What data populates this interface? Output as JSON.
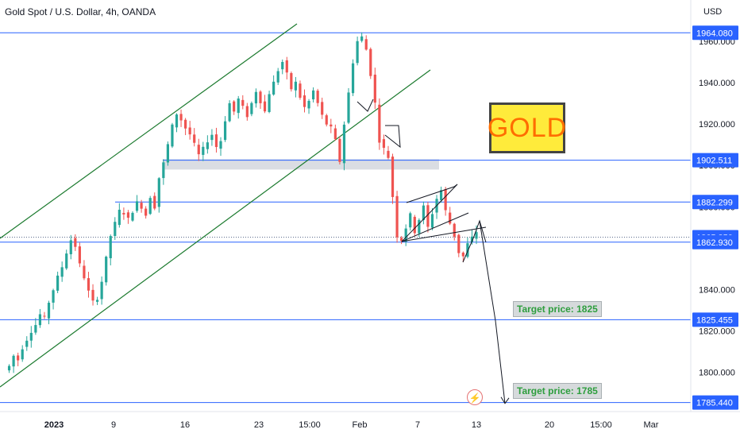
{
  "header": {
    "symbol_title": "Gold Spot / U.S. Dollar, 4h, OANDA",
    "currency": "USD"
  },
  "annotations": {
    "gold_label": "GOLD",
    "target_1": "Target price: 1825",
    "target_2": "Target price: 1785",
    "lightning_icon": "lightning-icon"
  },
  "colors": {
    "bull": "#26a69a",
    "bear": "#ef5350",
    "level_line": "#2962ff",
    "channel": "#1b7a2e",
    "zone": "#d1d4dc",
    "badge": "#2962ff"
  },
  "chart_data": {
    "type": "candlestick",
    "title": "Gold Spot / U.S. Dollar, 4h, OANDA",
    "y_unit": "USD",
    "ylim": [
      1781,
      1985
    ],
    "y_ticks": [
      1800,
      1820,
      1840,
      1880,
      1900,
      1920,
      1940,
      1960
    ],
    "y_tick_labels": [
      "1800.000",
      "1820.000",
      "1840.000",
      "1880.000",
      "1900.000",
      "1920.000",
      "1940.000",
      "1960.000"
    ],
    "x_ticks": [
      "2023",
      "9",
      "16",
      "23",
      "15:00",
      "Feb",
      "7",
      "13",
      "20",
      "15:00",
      "Mar"
    ],
    "price_badges": [
      {
        "label": "1964.080",
        "value": 1964.08
      },
      {
        "label": "1902.511",
        "value": 1902.511
      },
      {
        "label": "1882.299",
        "value": 1882.299
      },
      {
        "label": "1865.350",
        "value": 1865.35
      },
      {
        "label": "1862.930",
        "value": 1862.93
      },
      {
        "label": "1825.455",
        "value": 1825.455
      },
      {
        "label": "1785.440",
        "value": 1785.44
      }
    ],
    "horizontal_levels": [
      1964.08,
      1902.511,
      1882.299,
      1862.93,
      1825.455,
      1785.44
    ],
    "dotted_level": 1865.35,
    "support_zone": [
      1898,
      1903
    ],
    "targets": [
      1825,
      1785
    ],
    "price_path": [
      1801,
      1803,
      1808,
      1806,
      1812,
      1816,
      1820,
      1823,
      1828,
      1826,
      1834,
      1840,
      1846,
      1851,
      1858,
      1864,
      1861,
      1852,
      1846,
      1839,
      1834,
      1836,
      1844,
      1855,
      1866,
      1872,
      1878,
      1877,
      1874,
      1878,
      1882,
      1880,
      1876,
      1885,
      1880,
      1894,
      1901,
      1910,
      1919,
      1925,
      1922,
      1918,
      1915,
      1910,
      1905,
      1908,
      1912,
      1915,
      1909,
      1912,
      1922,
      1930,
      1926,
      1932,
      1928,
      1924,
      1930,
      1936,
      1931,
      1926,
      1935,
      1940,
      1946,
      1950,
      1944,
      1937,
      1940,
      1933,
      1928,
      1931,
      1936,
      1930,
      1924,
      1920,
      1918,
      1912,
      1902,
      1920,
      1935,
      1950,
      1960,
      1962,
      1956,
      1944,
      1930,
      1912,
      1908,
      1904,
      1885,
      1866,
      1864,
      1870,
      1876,
      1868,
      1874,
      1880,
      1870,
      1877,
      1884,
      1888,
      1878,
      1872,
      1866,
      1858,
      1856,
      1862,
      1865,
      1868
    ],
    "projection_path": [
      1868,
      1825,
      1785
    ]
  }
}
